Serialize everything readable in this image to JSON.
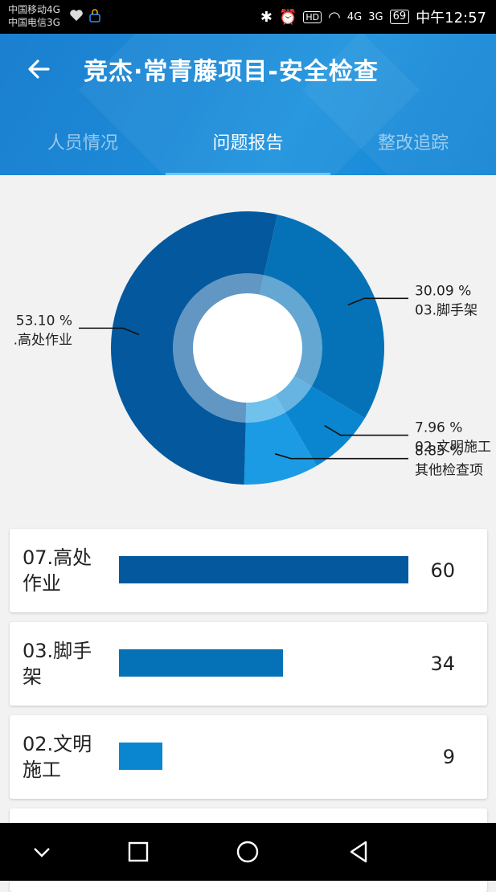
{
  "status_bar": {
    "carrier1": "中国移动4G",
    "carrier2": "中国电信3G",
    "sig1": "4G",
    "sig2": "3G",
    "battery": "69",
    "time": "中午12:57"
  },
  "header": {
    "title": "竞杰·常青藤项目-安全检查",
    "tabs": [
      {
        "label": "人员情况",
        "active": false
      },
      {
        "label": "问题报告",
        "active": true
      },
      {
        "label": "整改追踪",
        "active": false
      }
    ]
  },
  "chart_data": {
    "type": "pie",
    "title": "",
    "slices": [
      {
        "name": "03.脚手架",
        "percent": 30.09,
        "label": "30.09 %",
        "color": "#0572b8"
      },
      {
        "name": "02.文明施工",
        "percent": 7.96,
        "label": "7.96 %",
        "color": "#0a86d0"
      },
      {
        "name": "其他检查项",
        "percent": 8.85,
        "label": "8.85 %",
        "color": "#1a9be3"
      },
      {
        "name": "07.高处作业",
        "percent": 53.1,
        "label": "53.10 %",
        "label_name": ".高处作业",
        "color": "#03589e"
      }
    ]
  },
  "list": {
    "items": [
      {
        "label": "07.高处作业",
        "value": 60,
        "color": "#03589e"
      },
      {
        "label": "03.脚手架",
        "value": 34,
        "color": "#0572b8"
      },
      {
        "label": "02.文明施工",
        "value": 9,
        "color": "#0a86d0"
      }
    ],
    "max_value": 60
  }
}
